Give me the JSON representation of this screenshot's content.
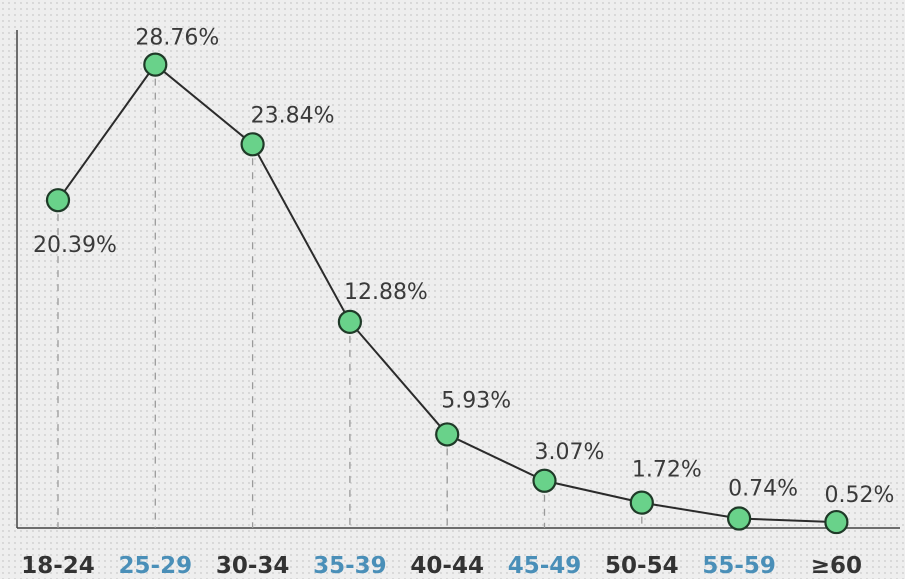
{
  "chart_data": {
    "type": "line",
    "title": "",
    "xlabel": "",
    "ylabel": "",
    "ylim": [
      0,
      30
    ],
    "grid": false,
    "categories": [
      "18-24",
      "25-29",
      "30-34",
      "35-39",
      "40-44",
      "45-49",
      "50-54",
      "55-59",
      "≥60"
    ],
    "values": [
      20.39,
      28.76,
      23.84,
      12.88,
      5.93,
      3.07,
      1.72,
      0.74,
      0.52
    ],
    "value_labels": [
      "20.39%",
      "28.76%",
      "23.84%",
      "12.88%",
      "5.93%",
      "3.07%",
      "1.72%",
      "0.74%",
      "0.52%"
    ],
    "tick_colors": [
      "#333333",
      "#4a8fb8",
      "#333333",
      "#4a8fb8",
      "#333333",
      "#4a8fb8",
      "#333333",
      "#4a8fb8",
      "#333333"
    ],
    "colors": {
      "marker_fill": "#69d28a",
      "marker_stroke": "#1f3a28",
      "line": "#2b2b2b",
      "dashed_guide": "#9a9a9a",
      "axis": "#444444"
    }
  }
}
